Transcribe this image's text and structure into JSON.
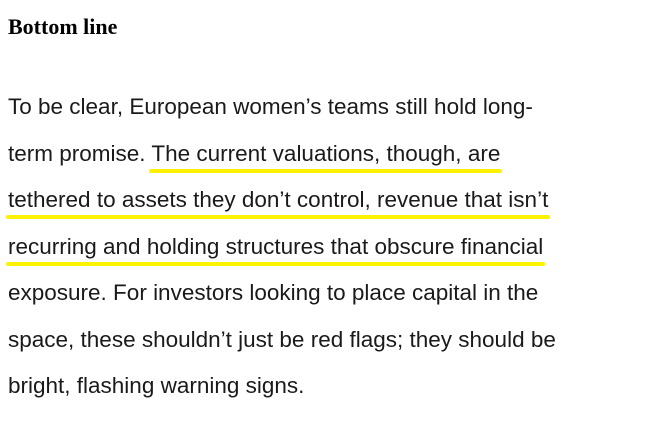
{
  "section": {
    "heading": "Bottom line"
  },
  "paragraph": {
    "lines": [
      {
        "plain_before": "To be clear, European women’s teams still hold long-",
        "highlight": "",
        "plain_after": ""
      },
      {
        "plain_before": "term promise. ",
        "highlight": "The current valuations, though, are",
        "plain_after": ""
      },
      {
        "plain_before": "",
        "highlight": "tethered to assets they don’t control, revenue that isn’t",
        "plain_after": ""
      },
      {
        "plain_before": "",
        "highlight": "recurring and holding structures that obscure financial",
        "plain_after": ""
      },
      {
        "plain_before": "exposure. For investors looking to place capital in the",
        "highlight": "",
        "plain_after": ""
      },
      {
        "plain_before": "space, these shouldn’t just be red flags; they should be",
        "highlight": "",
        "plain_after": ""
      },
      {
        "plain_before": "bright, flashing warning signs.",
        "highlight": "",
        "plain_after": ""
      }
    ]
  },
  "colors": {
    "highlight_underline": "#fff200",
    "text": "#1a1a1a",
    "background": "#ffffff"
  }
}
